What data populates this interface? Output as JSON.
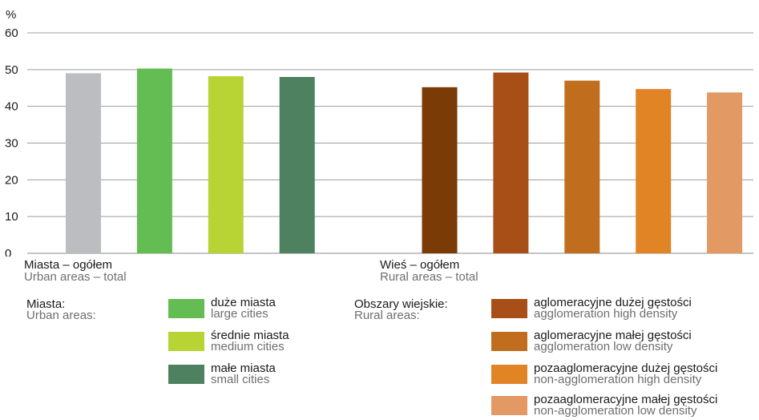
{
  "chart_data": {
    "type": "bar",
    "unit_label": "%",
    "ylim": [
      0,
      60
    ],
    "yticks": [
      0,
      10,
      20,
      30,
      40,
      50,
      60
    ],
    "grid": true,
    "bars": [
      {
        "value": 49,
        "color": "#bcbdc0"
      },
      {
        "value": 50.3,
        "color": "#64bd53"
      },
      {
        "value": 48.2,
        "color": "#b8d334"
      },
      {
        "value": 48,
        "color": "#4e8160"
      },
      {
        "value": 45.2,
        "color": "#7b3b06"
      },
      {
        "value": 49.2,
        "color": "#a84e17"
      },
      {
        "value": 47,
        "color": "#c06e1e"
      },
      {
        "value": 44.7,
        "color": "#e08426"
      },
      {
        "value": 43.8,
        "color": "#e29963"
      }
    ],
    "category_labels": {
      "urban": {
        "pl": "Miasta – ogółem",
        "en": "Urban areas – total"
      },
      "rural": {
        "pl": "Wieś – ogółem",
        "en": "Rural areas – total"
      }
    },
    "legend": {
      "urban_heading": {
        "pl": "Miasta:",
        "en": "Urban areas:"
      },
      "rural_heading": {
        "pl": "Obszary wiejskie:",
        "en": "Rural areas:"
      },
      "urban_items": [
        {
          "pl": "duże miasta",
          "en": "large cities",
          "color": "#64bd53"
        },
        {
          "pl": "średnie miasta",
          "en": "medium cities",
          "color": "#b8d334"
        },
        {
          "pl": "małe miasta",
          "en": "small cities",
          "color": "#4e8160"
        }
      ],
      "rural_items": [
        {
          "pl": "aglomeracyjne dużej gęstości",
          "en": "agglomeration high density",
          "color": "#a84e17"
        },
        {
          "pl": "aglomeracyjne małej gęstości",
          "en": "agglomeration low density",
          "color": "#c06e1e"
        },
        {
          "pl": "pozaaglomeracyjne dużej gęstości",
          "en": "non-agglomeration high density",
          "color": "#e08426"
        },
        {
          "pl": "pozaaglomeracyjne małej gęstości",
          "en": "non-agglomeration low density",
          "color": "#e29963"
        }
      ]
    }
  }
}
